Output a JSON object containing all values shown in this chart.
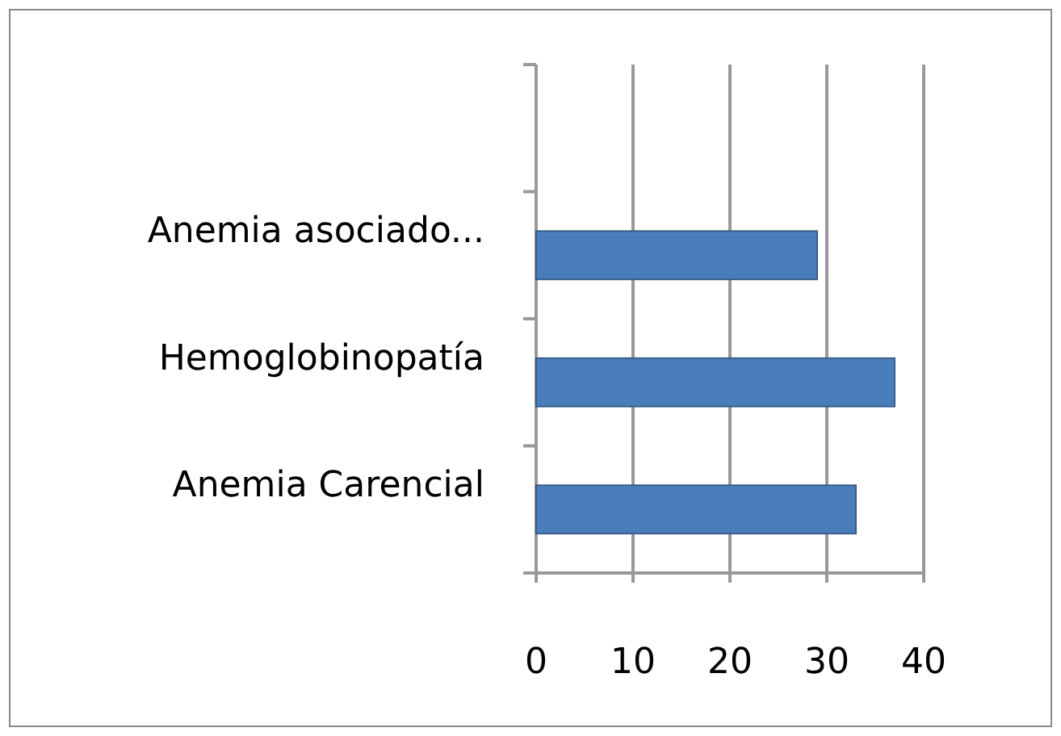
{
  "chart_data": {
    "type": "bar",
    "orientation": "horizontal",
    "categories": [
      null,
      "Anemia asociado...",
      "Hemoglobinopatía",
      "Anemia Carencial"
    ],
    "values": [
      null,
      29,
      37,
      33
    ],
    "color": "#4a7ebb",
    "xlim": [
      0,
      40
    ],
    "xticks": [
      0,
      10,
      20,
      30,
      40
    ],
    "grid": "x"
  }
}
